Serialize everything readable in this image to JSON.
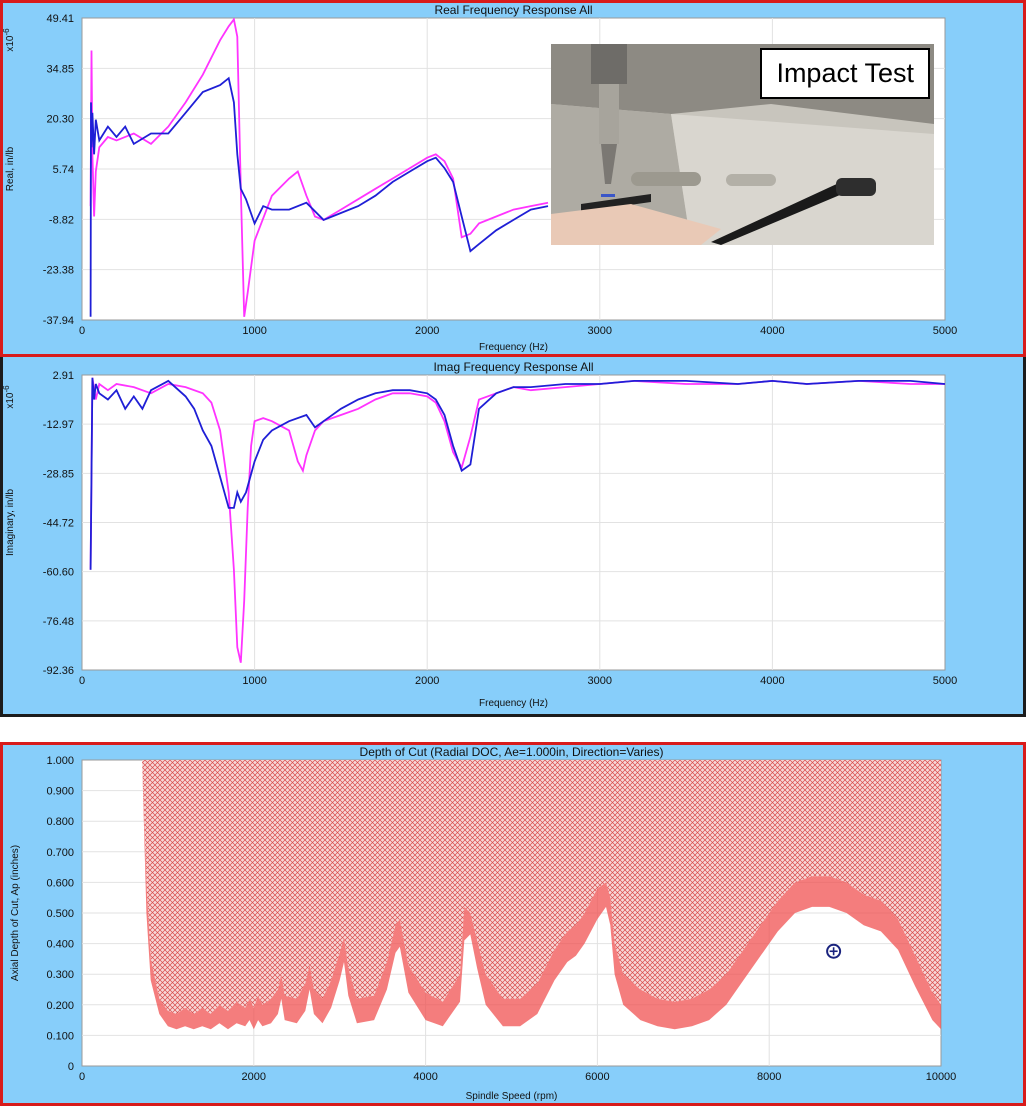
{
  "chart_data": [
    {
      "type": "line",
      "title": "Real Frequency Response All",
      "xlabel": "Frequency (Hz)",
      "ylabel": "Real, in/lb",
      "multiplier_label": "x10",
      "multiplier_exp": "-6",
      "xlim": [
        0,
        5000
      ],
      "ylim": [
        -37.94,
        49.41
      ],
      "x_ticks": [
        "0",
        "1000",
        "2000",
        "3000",
        "4000",
        "5000"
      ],
      "y_ticks": [
        "49.41",
        "34.85",
        "20.30",
        "5.74",
        "-8.82",
        "-23.38",
        "-37.94"
      ],
      "grid": true,
      "series": [
        {
          "color": "#ff33ff",
          "x": [
            50,
            55,
            60,
            70,
            80,
            100,
            150,
            200,
            300,
            400,
            500,
            600,
            700,
            800,
            850,
            880,
            900,
            920,
            940,
            960,
            1000,
            1100,
            1200,
            1250,
            1300,
            1350,
            1400,
            1500,
            1600,
            1700,
            1800,
            1900,
            2000,
            2050,
            2100,
            2150,
            2200,
            2250,
            2300,
            2400,
            2500,
            2600,
            2700
          ],
          "y": [
            -5,
            40,
            10,
            -8,
            5,
            12,
            15,
            14,
            16,
            13,
            18,
            25,
            33,
            43,
            47,
            49,
            44,
            0,
            -37,
            -30,
            -15,
            -2,
            3,
            5,
            -2,
            -8,
            -9,
            -6,
            -3,
            0,
            3,
            6,
            9,
            10,
            8,
            3,
            -14,
            -13,
            -10,
            -8,
            -6,
            -5,
            -4
          ]
        },
        {
          "color": "#1f1fd6",
          "x": [
            50,
            52,
            55,
            60,
            70,
            80,
            100,
            150,
            200,
            250,
            300,
            400,
            500,
            600,
            700,
            800,
            850,
            880,
            900,
            920,
            950,
            1000,
            1050,
            1100,
            1200,
            1300,
            1400,
            1500,
            1600,
            1700,
            1800,
            1900,
            2000,
            2050,
            2100,
            2150,
            2200,
            2250,
            2300,
            2400,
            2500,
            2600,
            2700
          ],
          "y": [
            -37,
            25,
            12,
            22,
            10,
            20,
            14,
            18,
            15,
            18,
            13,
            16,
            16,
            22,
            28,
            30,
            32,
            25,
            10,
            0,
            -3,
            -10,
            -5,
            -6,
            -6,
            -4,
            -9,
            -7,
            -5,
            -2,
            2,
            5,
            8,
            9,
            6,
            2,
            -8,
            -18,
            -16,
            -12,
            -9,
            -6,
            -5
          ]
        }
      ],
      "inset_label": "Impact Test"
    },
    {
      "type": "line",
      "title": "Imag Frequency Response All",
      "xlabel": "Frequency (Hz)",
      "ylabel": "Imaginary, in/lb",
      "multiplier_label": "x10",
      "multiplier_exp": "-6",
      "xlim": [
        0,
        5000
      ],
      "ylim": [
        -92.36,
        2.91
      ],
      "x_ticks": [
        "0",
        "1000",
        "2000",
        "3000",
        "4000",
        "5000"
      ],
      "y_ticks": [
        "2.91",
        "-12.97",
        "-28.85",
        "-44.72",
        "-60.60",
        "-76.48",
        "-92.36"
      ],
      "grid": true,
      "series": [
        {
          "color": "#ff33ff",
          "x": [
            50,
            60,
            80,
            100,
            150,
            200,
            300,
            400,
            500,
            600,
            700,
            750,
            800,
            850,
            880,
            900,
            920,
            940,
            960,
            980,
            1000,
            1050,
            1100,
            1200,
            1250,
            1280,
            1300,
            1350,
            1400,
            1500,
            1600,
            1700,
            1800,
            1900,
            2000,
            2050,
            2100,
            2150,
            2200,
            2250,
            2300,
            2400,
            2500,
            2600,
            2800,
            3000,
            3200,
            3500,
            3800,
            4000,
            4200,
            4500,
            4800,
            5000
          ],
          "y": [
            -60,
            2,
            -5,
            0,
            -2,
            0,
            -1,
            -3,
            0,
            -1,
            -3,
            -6,
            -15,
            -35,
            -60,
            -85,
            -90,
            -70,
            -40,
            -20,
            -12,
            -11,
            -12,
            -15,
            -25,
            -28,
            -23,
            -15,
            -12,
            -10,
            -8,
            -5,
            -3,
            -3,
            -4,
            -6,
            -12,
            -22,
            -27,
            -17,
            -5,
            -3,
            -1,
            -2,
            -1,
            0,
            1,
            0,
            0,
            1,
            0,
            1,
            0,
            0
          ]
        },
        {
          "color": "#1f1fd6",
          "x": [
            50,
            60,
            70,
            80,
            100,
            150,
            200,
            250,
            300,
            350,
            400,
            500,
            600,
            650,
            700,
            750,
            800,
            850,
            880,
            900,
            920,
            950,
            1000,
            1050,
            1100,
            1200,
            1300,
            1350,
            1400,
            1500,
            1600,
            1700,
            1800,
            1900,
            2000,
            2050,
            2100,
            2150,
            2200,
            2250,
            2300,
            2400,
            2500,
            2600,
            2800,
            3000,
            3200,
            3500,
            3800,
            4000,
            4200,
            4500,
            4800,
            5000
          ],
          "y": [
            -60,
            2,
            -5,
            0,
            -3,
            -5,
            -2,
            -8,
            -4,
            -8,
            -2,
            1,
            -4,
            -8,
            -15,
            -20,
            -30,
            -40,
            -40,
            -35,
            -38,
            -35,
            -25,
            -18,
            -15,
            -12,
            -10,
            -14,
            -12,
            -8,
            -5,
            -3,
            -2,
            -2,
            -3,
            -5,
            -10,
            -20,
            -28,
            -26,
            -8,
            -3,
            -1,
            -1,
            0,
            0,
            1,
            1,
            0,
            1,
            0,
            1,
            1,
            0
          ]
        }
      ]
    },
    {
      "type": "area",
      "title": "Depth of Cut (Radial DOC, Ae=1.000in, Direction=Varies)",
      "xlabel": "Spindle Speed (rpm)",
      "ylabel": "Axial Depth of Cut, Ap (inches)",
      "xlim": [
        0,
        10000
      ],
      "ylim": [
        0,
        1.0
      ],
      "x_ticks": [
        "0",
        "2000",
        "4000",
        "6000",
        "8000",
        "10000"
      ],
      "y_ticks": [
        "0",
        "0.100",
        "0.200",
        "0.300",
        "0.400",
        "0.500",
        "0.600",
        "0.700",
        "0.800",
        "0.900",
        "1.000"
      ],
      "grid": true,
      "fill_color": "#f04b4b",
      "x": [
        700,
        750,
        800,
        900,
        1000,
        1100,
        1200,
        1300,
        1400,
        1500,
        1600,
        1700,
        1800,
        1900,
        1950,
        2000,
        2050,
        2100,
        2200,
        2280,
        2320,
        2360,
        2500,
        2600,
        2650,
        2700,
        2800,
        2900,
        3000,
        3050,
        3100,
        3200,
        3400,
        3550,
        3650,
        3700,
        3800,
        4000,
        4200,
        4400,
        4450,
        4520,
        4600,
        4700,
        4900,
        5100,
        5300,
        5500,
        5650,
        5750,
        5850,
        6000,
        6100,
        6150,
        6200,
        6300,
        6500,
        6700,
        6900,
        7100,
        7300,
        7500,
        7700,
        7900,
        8100,
        8300,
        8500,
        8700,
        8900,
        9100,
        9300,
        9500,
        9700,
        9900,
        10000
      ],
      "upper": [
        1.0,
        0.6,
        0.35,
        0.22,
        0.18,
        0.17,
        0.19,
        0.17,
        0.19,
        0.17,
        0.2,
        0.18,
        0.21,
        0.19,
        0.22,
        0.19,
        0.23,
        0.2,
        0.22,
        0.25,
        0.3,
        0.23,
        0.22,
        0.27,
        0.33,
        0.25,
        0.22,
        0.28,
        0.37,
        0.42,
        0.32,
        0.22,
        0.23,
        0.34,
        0.46,
        0.48,
        0.33,
        0.24,
        0.21,
        0.3,
        0.52,
        0.5,
        0.41,
        0.3,
        0.22,
        0.22,
        0.27,
        0.38,
        0.44,
        0.46,
        0.5,
        0.58,
        0.6,
        0.55,
        0.4,
        0.3,
        0.25,
        0.22,
        0.21,
        0.22,
        0.25,
        0.3,
        0.38,
        0.46,
        0.54,
        0.6,
        0.62,
        0.62,
        0.6,
        0.56,
        0.54,
        0.48,
        0.36,
        0.24,
        0.2
      ],
      "lower": [
        1.0,
        0.5,
        0.28,
        0.17,
        0.13,
        0.12,
        0.13,
        0.12,
        0.13,
        0.12,
        0.14,
        0.12,
        0.14,
        0.13,
        0.15,
        0.12,
        0.15,
        0.13,
        0.14,
        0.17,
        0.22,
        0.15,
        0.14,
        0.18,
        0.25,
        0.17,
        0.14,
        0.19,
        0.28,
        0.34,
        0.23,
        0.14,
        0.15,
        0.25,
        0.37,
        0.39,
        0.24,
        0.15,
        0.13,
        0.21,
        0.41,
        0.43,
        0.32,
        0.2,
        0.13,
        0.13,
        0.17,
        0.28,
        0.34,
        0.36,
        0.4,
        0.48,
        0.52,
        0.46,
        0.3,
        0.2,
        0.15,
        0.13,
        0.12,
        0.13,
        0.15,
        0.2,
        0.28,
        0.36,
        0.44,
        0.5,
        0.52,
        0.52,
        0.5,
        0.46,
        0.44,
        0.38,
        0.26,
        0.15,
        0.12
      ],
      "marker": {
        "x": 8750,
        "y": 0.375
      }
    }
  ]
}
